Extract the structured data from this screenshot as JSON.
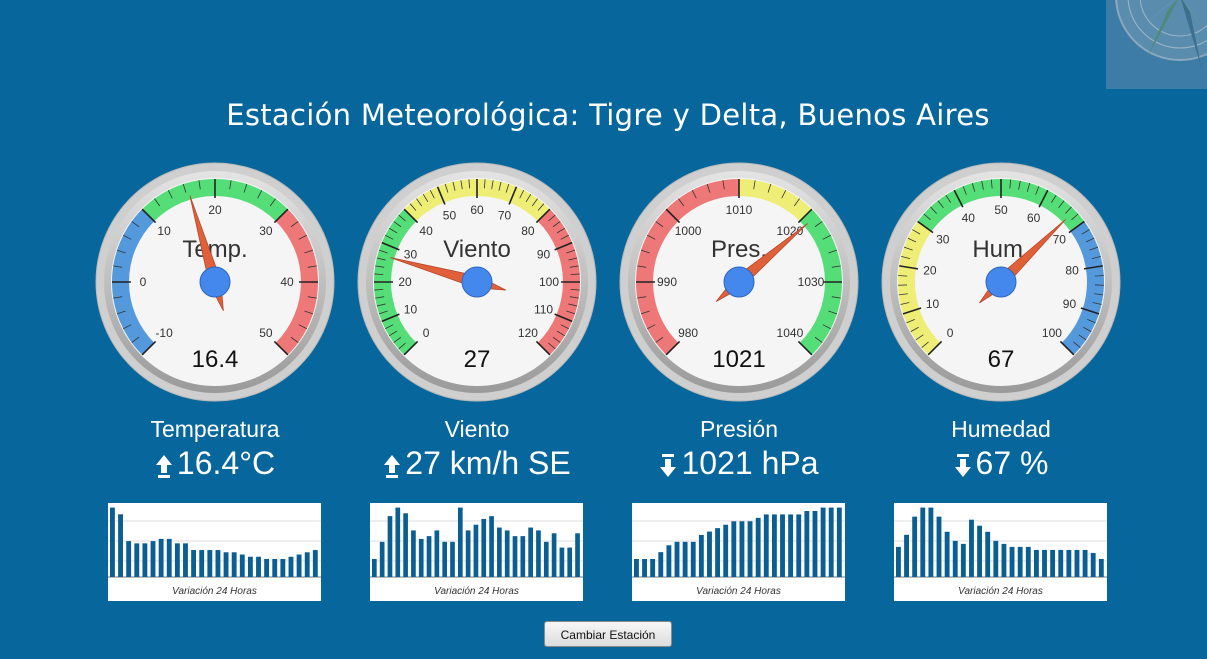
{
  "page": {
    "title": "Estación Meteorológica: Tigre y Delta, Buenos Aires",
    "button_label": "Cambiar Estación",
    "chart_caption": "Variación 24 Horas"
  },
  "colors": {
    "background": "#07669b",
    "band_blue": "#5599dd",
    "band_green": "#55dd77",
    "band_red": "#ee7777",
    "band_yellow": "#eeee77",
    "needle": "#e0603a",
    "hub": "#4488ee",
    "bar": "#0b5e92"
  },
  "gauges": [
    {
      "id": "temp",
      "title": "Temp.",
      "display": "16.4",
      "value": 16.4,
      "min": -10,
      "max": 50,
      "major_step": 10,
      "minor_step": 2,
      "bands": [
        {
          "from": -10,
          "to": 10,
          "color": "#5599dd"
        },
        {
          "from": 10,
          "to": 30,
          "color": "#55dd77"
        },
        {
          "from": 30,
          "to": 50,
          "color": "#ee7777"
        }
      ],
      "name": "Temperatura",
      "reading": "16.4°C",
      "trend": "up",
      "history": [
        49,
        46,
        34,
        33,
        33,
        34,
        35,
        35,
        33,
        33,
        30,
        30,
        30,
        30,
        29,
        29,
        28,
        27,
        27,
        26,
        26,
        26,
        27,
        28,
        29,
        30
      ]
    },
    {
      "id": "wind",
      "title": "Viento",
      "display": "27",
      "value": 27,
      "min": 0,
      "max": 120,
      "major_step": 10,
      "minor_step": 2,
      "bands": [
        {
          "from": 0,
          "to": 40,
          "color": "#55dd77"
        },
        {
          "from": 40,
          "to": 80,
          "color": "#eeee77"
        },
        {
          "from": 80,
          "to": 120,
          "color": "#ee7777"
        }
      ],
      "name": "Viento",
      "reading": "27 km/h SE",
      "trend": "up",
      "history": [
        12,
        18,
        27,
        30,
        28,
        22,
        19,
        20,
        22,
        18,
        18,
        30,
        22,
        24,
        26,
        27,
        23,
        22,
        20,
        20,
        23,
        22,
        18,
        21,
        16,
        16,
        21
      ]
    },
    {
      "id": "press",
      "title": "Pres.",
      "display": "1021",
      "value": 1021,
      "min": 980,
      "max": 1040,
      "major_step": 10,
      "minor_step": 2,
      "bands": [
        {
          "from": 980,
          "to": 1010,
          "color": "#ee7777"
        },
        {
          "from": 1010,
          "to": 1020,
          "color": "#eeee77"
        },
        {
          "from": 1020,
          "to": 1040,
          "color": "#55dd77"
        }
      ],
      "name": "Presión",
      "reading": "1021 hPa",
      "trend": "down",
      "history": [
        1004,
        1004,
        1004,
        1006,
        1008,
        1009,
        1009,
        1009,
        1011,
        1012,
        1013,
        1014,
        1015,
        1015,
        1015,
        1016,
        1017,
        1017,
        1017,
        1017,
        1017,
        1018,
        1018,
        1019,
        1019,
        1019
      ]
    },
    {
      "id": "hum",
      "title": "Hum.",
      "display": "67",
      "value": 67,
      "min": 0,
      "max": 100,
      "major_step": 10,
      "minor_step": 2,
      "bands": [
        {
          "from": 0,
          "to": 30,
          "color": "#eeee77"
        },
        {
          "from": 30,
          "to": 70,
          "color": "#55dd77"
        },
        {
          "from": 70,
          "to": 100,
          "color": "#5599dd"
        }
      ],
      "name": "Humedad",
      "reading": "67 %",
      "trend": "down",
      "history": [
        72,
        76,
        82,
        85,
        85,
        82,
        77,
        74,
        73,
        81,
        79,
        77,
        74,
        73,
        72,
        72,
        72,
        71,
        71,
        71,
        71,
        71,
        71,
        71,
        70,
        68
      ]
    }
  ]
}
